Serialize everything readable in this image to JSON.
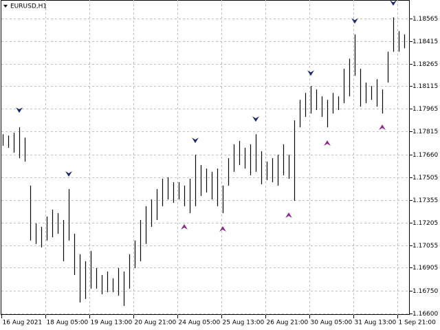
{
  "chart_data": {
    "type": "hilo",
    "title": "EURUSD,H1",
    "color": "#000000",
    "grid": true,
    "x": [
      0,
      1,
      2,
      3,
      4,
      5,
      6,
      7,
      8,
      9,
      10,
      11,
      12,
      13,
      14,
      15,
      16,
      17,
      18,
      19,
      20,
      21,
      22,
      23,
      24,
      25,
      26,
      27,
      28,
      29,
      30,
      31,
      32,
      33,
      34,
      35,
      36,
      37,
      38,
      39,
      40,
      41,
      42,
      43,
      44,
      45,
      46,
      47,
      48,
      49,
      50,
      51,
      52,
      53,
      54,
      55,
      56,
      57,
      58,
      59,
      60,
      61,
      62,
      63,
      64,
      65,
      66,
      67,
      68,
      69,
      70,
      71,
      72,
      73
    ],
    "high": [
      1.17795,
      1.17786,
      1.17805,
      1.17841,
      1.17772,
      1.17452,
      1.172,
      1.17177,
      1.17246,
      1.17292,
      1.17269,
      1.17223,
      1.17429,
      1.17131,
      1.16994,
      1.16948,
      1.17017,
      1.16902,
      1.16856,
      1.16879,
      1.16834,
      1.16902,
      1.16879,
      1.16994,
      1.17086,
      1.17223,
      1.17315,
      1.1736,
      1.17429,
      1.17498,
      1.17507,
      1.17475,
      1.17475,
      1.17452,
      1.17498,
      1.17658,
      1.17589,
      1.17566,
      1.17544,
      1.17566,
      1.17452,
      1.17635,
      1.17727,
      1.1775,
      1.17704,
      1.17727,
      1.17795,
      1.17681,
      1.17612,
      1.17635,
      1.17658,
      1.17727,
      1.17658,
      1.17887,
      1.18024,
      1.1807,
      1.18116,
      1.18093,
      1.18047,
      1.18024,
      1.1807,
      1.18047,
      1.18231,
      1.18299,
      1.1846,
      1.18231,
      1.18139,
      1.18116,
      1.18162,
      1.18093,
      1.18345,
      1.18574,
      1.18482,
      1.1846
    ],
    "low": [
      1.17718,
      1.17704,
      1.17672,
      1.17635,
      1.17612,
      1.17086,
      1.17063,
      1.1704,
      1.17086,
      1.17108,
      1.17131,
      1.16948,
      1.17086,
      1.16856,
      1.16673,
      1.16696,
      1.16765,
      1.16765,
      1.16728,
      1.16742,
      1.16742,
      1.16719,
      1.1665,
      1.16765,
      1.16902,
      1.16948,
      1.17063,
      1.17177,
      1.17223,
      1.17315,
      1.1736,
      1.17337,
      1.1736,
      1.17315,
      1.17269,
      1.17315,
      1.17383,
      1.17406,
      1.1736,
      1.17315,
      1.17269,
      1.17452,
      1.17544,
      1.17589,
      1.17566,
      1.17521,
      1.17544,
      1.17461,
      1.17489,
      1.17475,
      1.17452,
      1.17521,
      1.17498,
      1.17351,
      1.17841,
      1.1791,
      1.17933,
      1.17956,
      1.1791,
      1.17841,
      1.17933,
      1.17956,
      1.18002,
      1.18047,
      1.18185,
      1.17979,
      1.18002,
      1.18024,
      1.17979,
      1.17933,
      1.18139,
      1.18345,
      1.18345,
      1.18368
    ],
    "fractals_up": {
      "color": "#1a2a6c",
      "x": [
        3,
        12,
        35,
        46,
        56,
        64,
        71
      ],
      "values": [
        1.17956,
        1.1753,
        1.17754,
        1.17896,
        1.18203,
        1.18551,
        1.1867
      ]
    },
    "fractals_down": {
      "color": "#8b2a8b",
      "x": [
        33,
        40,
        52,
        59,
        69
      ],
      "values": [
        1.17177,
        1.17163,
        1.17255,
        1.17736,
        1.17841
      ]
    },
    "xlim": [
      -0.25,
      74
    ],
    "xticks": [
      {
        "value": -0.25,
        "label": "16 Aug 2021"
      },
      {
        "value": 7.75,
        "label": "18 Aug 05:00"
      },
      {
        "value": 15.75,
        "label": "19 Aug 13:00"
      },
      {
        "value": 23.75,
        "label": "20 Aug 21:00"
      },
      {
        "value": 31.75,
        "label": "24 Aug 05:00"
      },
      {
        "value": 39.75,
        "label": "25 Aug 13:00"
      },
      {
        "value": 47.75,
        "label": "26 Aug 21:00"
      },
      {
        "value": 55.75,
        "label": "30 Aug 05:00"
      },
      {
        "value": 63.75,
        "label": "31 Aug 13:00"
      },
      {
        "value": 71.75,
        "label": "1 Sep 21:00"
      }
    ],
    "ylim": [
      1.1659,
      1.1869
    ],
    "yticks": [
      {
        "value": 1.166,
        "label": "1.16600"
      },
      {
        "value": 1.1675,
        "label": "1.16750"
      },
      {
        "value": 1.16905,
        "label": "1.16905"
      },
      {
        "value": 1.17055,
        "label": "1.17055"
      },
      {
        "value": 1.17205,
        "label": "1.17205"
      },
      {
        "value": 1.17355,
        "label": "1.17355"
      },
      {
        "value": 1.17505,
        "label": "1.17505"
      },
      {
        "value": 1.1766,
        "label": "1.17660"
      },
      {
        "value": 1.17815,
        "label": "1.17815"
      },
      {
        "value": 1.17965,
        "label": "1.17965"
      },
      {
        "value": 1.18115,
        "label": "1.18115"
      },
      {
        "value": 1.18265,
        "label": "1.18265"
      },
      {
        "value": 1.18415,
        "label": "1.18415"
      },
      {
        "value": 1.18565,
        "label": "1.18565"
      }
    ]
  }
}
